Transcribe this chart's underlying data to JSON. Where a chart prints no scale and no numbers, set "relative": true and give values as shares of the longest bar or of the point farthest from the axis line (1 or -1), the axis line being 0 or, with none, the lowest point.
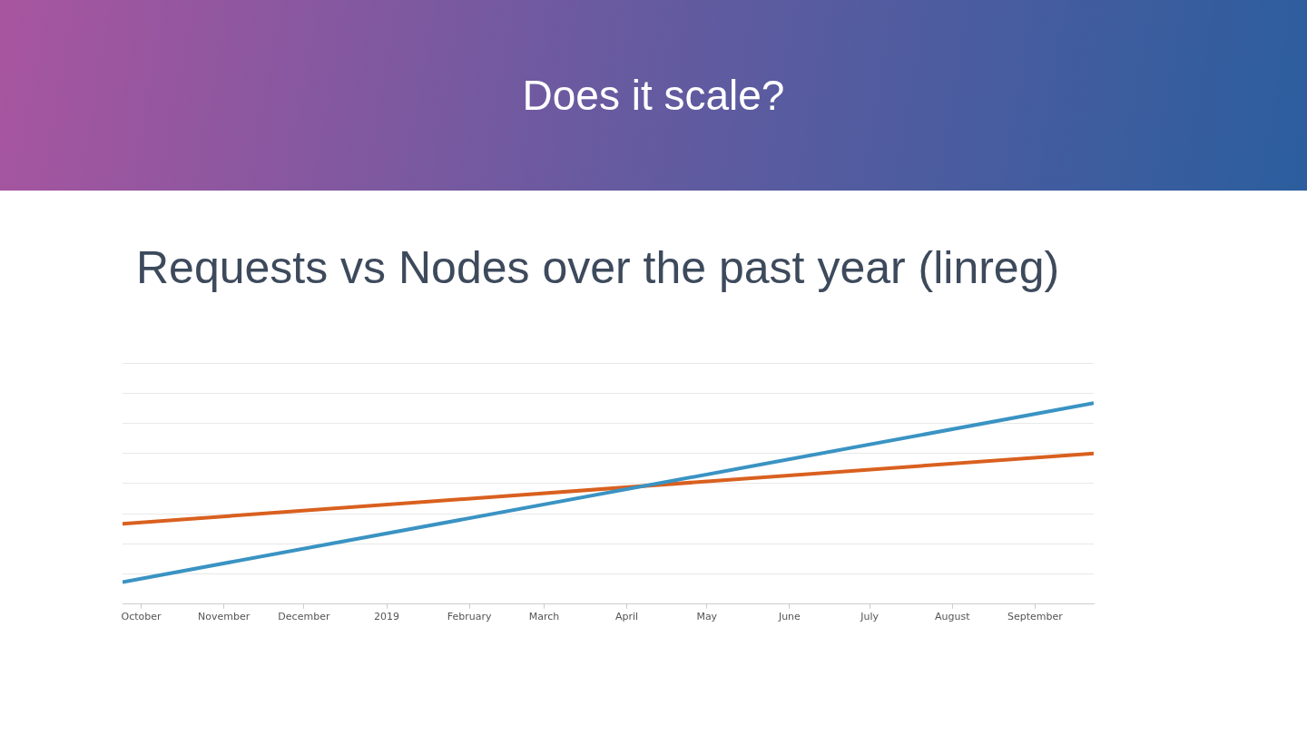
{
  "chart_data": {
    "type": "line",
    "title": "Does it scale?",
    "subtitle": "Requests vs Nodes over the past year (linreg)",
    "relative": true,
    "x": [
      "2018-09-24",
      "2019-09-23"
    ],
    "xlim": [
      "2018-09-24",
      "2019-09-23"
    ],
    "xticks": [
      {
        "value": "2018-10-01",
        "label": "October"
      },
      {
        "value": "2018-11-01",
        "label": "November"
      },
      {
        "value": "2018-12-01",
        "label": "December"
      },
      {
        "value": "2019-01-01",
        "label": "2019"
      },
      {
        "value": "2019-02-01",
        "label": "February"
      },
      {
        "value": "2019-03-01",
        "label": "March"
      },
      {
        "value": "2019-04-01",
        "label": "April"
      },
      {
        "value": "2019-05-01",
        "label": "May"
      },
      {
        "value": "2019-06-01",
        "label": "June"
      },
      {
        "value": "2019-07-01",
        "label": "July"
      },
      {
        "value": "2019-08-01",
        "label": "August"
      },
      {
        "value": "2019-09-01",
        "label": "September"
      }
    ],
    "series": [
      {
        "color": "#3a93c3",
        "values": [
          0.11,
          1
        ]
      },
      {
        "color": "#d9601f",
        "values": [
          0.4,
          0.75
        ]
      }
    ],
    "grid": "y",
    "legend": false,
    "marker": "none",
    "line_style": "solid"
  }
}
